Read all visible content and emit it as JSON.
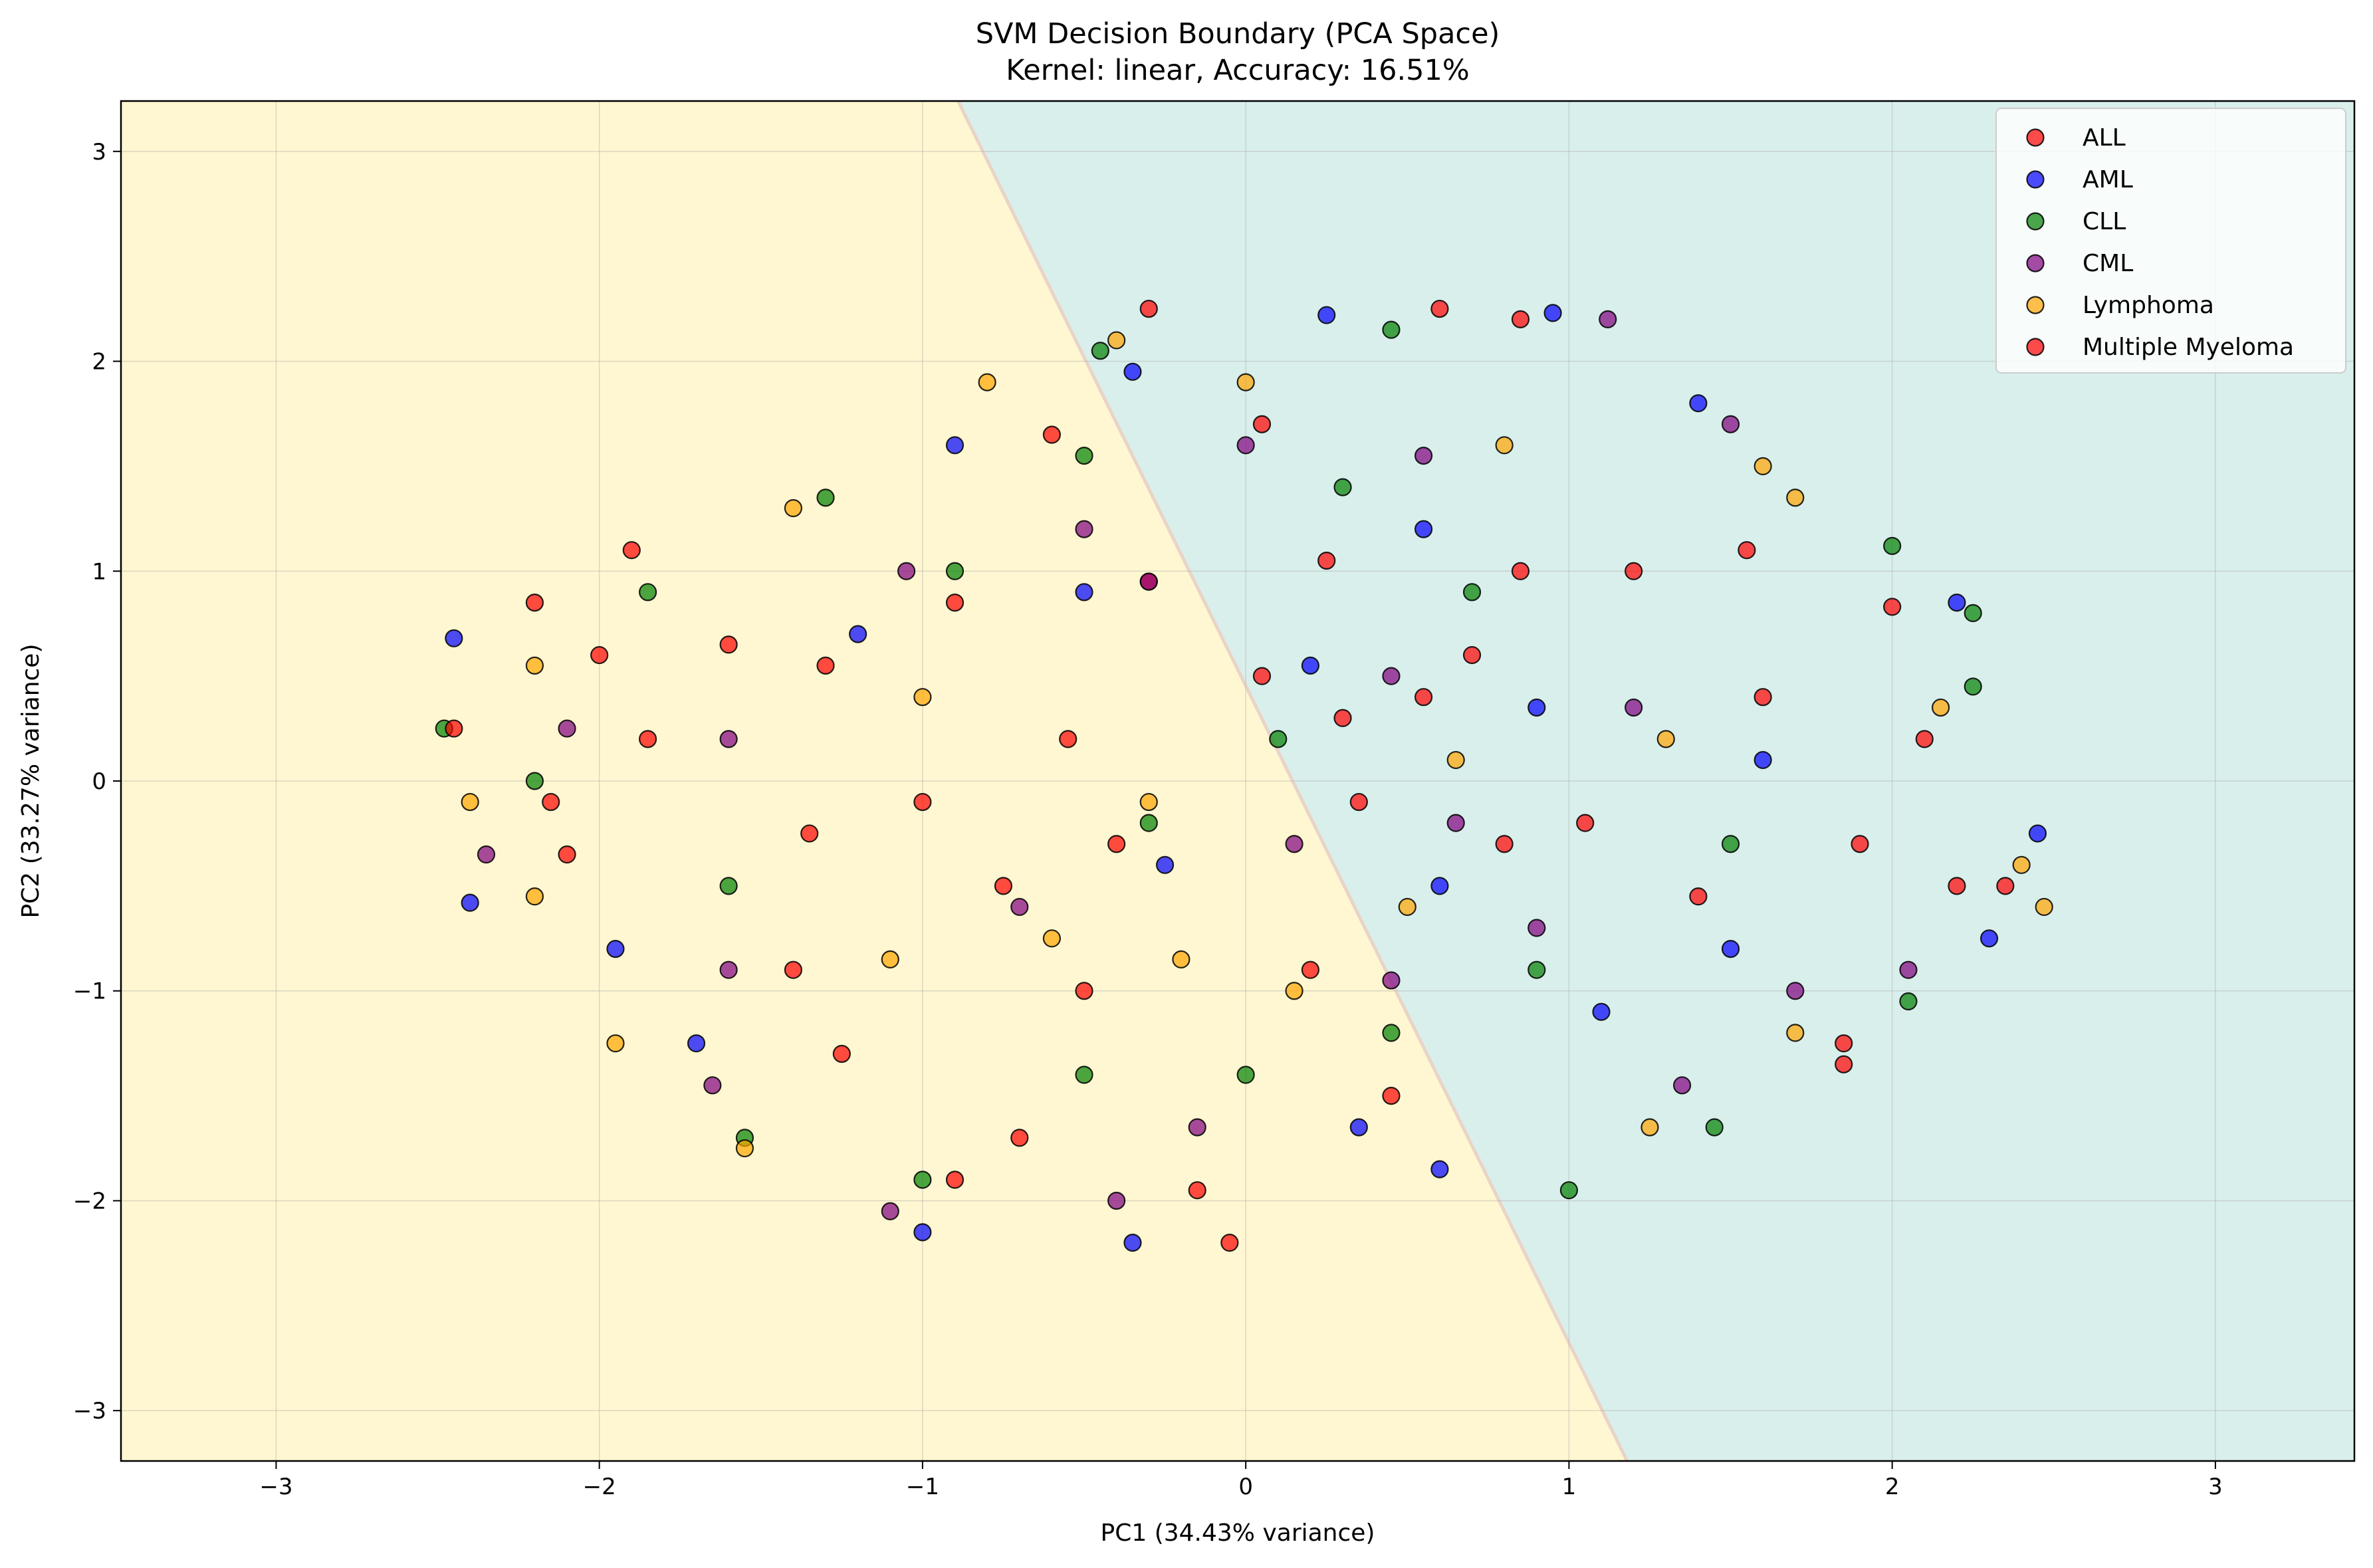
{
  "chart_data": {
    "type": "scatter",
    "title": "SVM Decision Boundary (PCA Space)",
    "subtitle": "Kernel: linear, Accuracy: 16.51%",
    "xlabel": "PC1 (34.43% variance)",
    "ylabel": "PC2 (33.27% variance)",
    "xlim": [
      -3.48,
      3.43
    ],
    "ylim": [
      -3.24,
      3.24
    ],
    "xticks": [
      -3,
      -2,
      -1,
      0,
      1,
      2,
      3
    ],
    "yticks": [
      -3,
      -2,
      -1,
      0,
      1,
      2,
      3
    ],
    "grid": true,
    "legend_position": "top-right",
    "decision_boundary": {
      "line_points": [
        [
          -0.89,
          3.24
        ],
        [
          1.18,
          -3.24
        ]
      ],
      "left_region_color": "#fff7d1",
      "right_region_color": "#d9efec"
    },
    "point_opacity": 0.7,
    "series": [
      {
        "name": "ALL",
        "color": "#ff0000",
        "points": [
          [
            -2.2,
            0.85
          ],
          [
            -1.85,
            0.2
          ],
          [
            -1.3,
            0.55
          ],
          [
            -0.9,
            0.85
          ],
          [
            -0.6,
            1.65
          ],
          [
            -0.3,
            0.95
          ],
          [
            0.05,
            1.7
          ],
          [
            0.3,
            0.3
          ],
          [
            0.55,
            0.4
          ],
          [
            0.8,
            -0.3
          ],
          [
            1.2,
            1.0
          ],
          [
            1.6,
            0.4
          ],
          [
            2.0,
            0.83
          ],
          [
            2.2,
            -0.5
          ],
          [
            2.35,
            -0.5
          ],
          [
            -0.05,
            -2.2
          ],
          [
            -0.9,
            -1.9
          ],
          [
            -0.5,
            -1.0
          ],
          [
            0.2,
            -0.9
          ],
          [
            -1.4,
            -0.9
          ],
          [
            -2.1,
            -0.35
          ],
          [
            0.85,
            2.2
          ],
          [
            -0.3,
            2.25
          ],
          [
            1.85,
            -1.25
          ]
        ]
      },
      {
        "name": "AML",
        "color": "#0000ff",
        "points": [
          [
            -2.45,
            0.68
          ],
          [
            -2.4,
            -0.58
          ],
          [
            -1.95,
            -0.8
          ],
          [
            -1.7,
            -1.25
          ],
          [
            -1.0,
            -2.15
          ],
          [
            -0.35,
            -2.2
          ],
          [
            0.35,
            -1.65
          ],
          [
            0.6,
            -1.85
          ],
          [
            1.1,
            -1.1
          ],
          [
            1.5,
            -0.8
          ],
          [
            2.2,
            0.85
          ],
          [
            2.45,
            -0.25
          ],
          [
            2.3,
            -0.75
          ],
          [
            1.4,
            1.8
          ],
          [
            0.95,
            2.23
          ],
          [
            0.25,
            2.22
          ],
          [
            -0.35,
            1.95
          ],
          [
            -0.9,
            1.6
          ],
          [
            0.2,
            0.55
          ],
          [
            0.55,
            1.2
          ],
          [
            -0.5,
            0.9
          ],
          [
            -1.2,
            0.7
          ],
          [
            0.9,
            0.35
          ],
          [
            1.6,
            0.1
          ],
          [
            0.6,
            -0.5
          ],
          [
            -0.25,
            -0.4
          ]
        ]
      },
      {
        "name": "CLL",
        "color": "#008000",
        "points": [
          [
            -2.48,
            0.25
          ],
          [
            -2.2,
            0.0
          ],
          [
            -1.85,
            0.9
          ],
          [
            -1.6,
            -0.5
          ],
          [
            -1.55,
            -1.7
          ],
          [
            -1.0,
            -1.9
          ],
          [
            -0.5,
            -1.4
          ],
          [
            0.0,
            -1.4
          ],
          [
            0.45,
            -1.2
          ],
          [
            0.9,
            -0.9
          ],
          [
            1.45,
            -1.65
          ],
          [
            2.05,
            -1.05
          ],
          [
            2.25,
            0.45
          ],
          [
            2.25,
            0.8
          ],
          [
            2.0,
            1.12
          ],
          [
            1.0,
            -1.95
          ],
          [
            0.45,
            2.15
          ],
          [
            -0.45,
            2.05
          ],
          [
            -0.5,
            1.55
          ],
          [
            -0.9,
            1.0
          ],
          [
            0.3,
            1.4
          ],
          [
            0.7,
            0.9
          ],
          [
            -1.3,
            1.35
          ],
          [
            1.5,
            -0.3
          ],
          [
            0.1,
            0.2
          ],
          [
            -0.3,
            -0.2
          ]
        ]
      },
      {
        "name": "CML",
        "color": "#800080",
        "points": [
          [
            -2.35,
            -0.35
          ],
          [
            -2.1,
            0.25
          ],
          [
            -1.6,
            -0.9
          ],
          [
            -1.65,
            -1.45
          ],
          [
            -1.1,
            -2.05
          ],
          [
            -0.4,
            -2.0
          ],
          [
            -0.15,
            -1.65
          ],
          [
            0.45,
            -0.95
          ],
          [
            0.9,
            -0.7
          ],
          [
            1.35,
            -1.45
          ],
          [
            1.7,
            -1.0
          ],
          [
            2.05,
            -0.9
          ],
          [
            1.5,
            1.7
          ],
          [
            1.12,
            2.2
          ],
          [
            0.55,
            1.55
          ],
          [
            0.0,
            1.6
          ],
          [
            -0.5,
            1.2
          ],
          [
            -1.05,
            1.0
          ],
          [
            -1.6,
            0.2
          ],
          [
            0.45,
            0.5
          ],
          [
            0.65,
            -0.2
          ],
          [
            -0.3,
            0.95
          ],
          [
            1.2,
            0.35
          ],
          [
            0.15,
            -0.3
          ],
          [
            -0.7,
            -0.6
          ]
        ]
      },
      {
        "name": "Lymphoma",
        "color": "#ffa500",
        "points": [
          [
            -2.4,
            -0.1
          ],
          [
            -2.2,
            0.55
          ],
          [
            -2.2,
            -0.55
          ],
          [
            -1.95,
            -1.25
          ],
          [
            -1.55,
            -1.75
          ],
          [
            -1.1,
            -0.85
          ],
          [
            -0.6,
            -0.75
          ],
          [
            -0.2,
            -0.85
          ],
          [
            0.15,
            -1.0
          ],
          [
            0.5,
            -0.6
          ],
          [
            1.25,
            -1.65
          ],
          [
            1.7,
            -1.2
          ],
          [
            2.4,
            -0.4
          ],
          [
            2.47,
            -0.6
          ],
          [
            2.15,
            0.35
          ],
          [
            1.6,
            1.5
          ],
          [
            1.7,
            1.35
          ],
          [
            1.3,
            0.2
          ],
          [
            0.8,
            1.6
          ],
          [
            -0.4,
            2.1
          ],
          [
            -0.8,
            1.9
          ],
          [
            -1.4,
            1.3
          ],
          [
            -1.0,
            0.4
          ],
          [
            0.0,
            1.9
          ],
          [
            0.65,
            0.1
          ],
          [
            -0.3,
            -0.1
          ]
        ]
      },
      {
        "name": "Multiple Myeloma",
        "color": "#ff0000",
        "points": [
          [
            -2.45,
            0.25
          ],
          [
            -2.15,
            -0.1
          ],
          [
            -2.0,
            0.6
          ],
          [
            -1.6,
            0.65
          ],
          [
            -1.35,
            -0.25
          ],
          [
            -1.0,
            -0.1
          ],
          [
            -0.75,
            -0.5
          ],
          [
            -0.4,
            -0.3
          ],
          [
            0.05,
            0.5
          ],
          [
            0.35,
            -0.1
          ],
          [
            0.7,
            0.6
          ],
          [
            1.05,
            -0.2
          ],
          [
            1.4,
            -0.55
          ],
          [
            1.9,
            -0.3
          ],
          [
            2.1,
            0.2
          ],
          [
            1.85,
            -1.35
          ],
          [
            0.85,
            1.0
          ],
          [
            0.45,
            -1.5
          ],
          [
            -0.15,
            -1.95
          ],
          [
            -0.7,
            -1.7
          ],
          [
            -1.25,
            -1.3
          ],
          [
            -0.55,
            0.2
          ],
          [
            0.25,
            1.05
          ],
          [
            -1.9,
            1.1
          ],
          [
            1.55,
            1.1
          ],
          [
            0.6,
            2.25
          ]
        ]
      }
    ]
  }
}
